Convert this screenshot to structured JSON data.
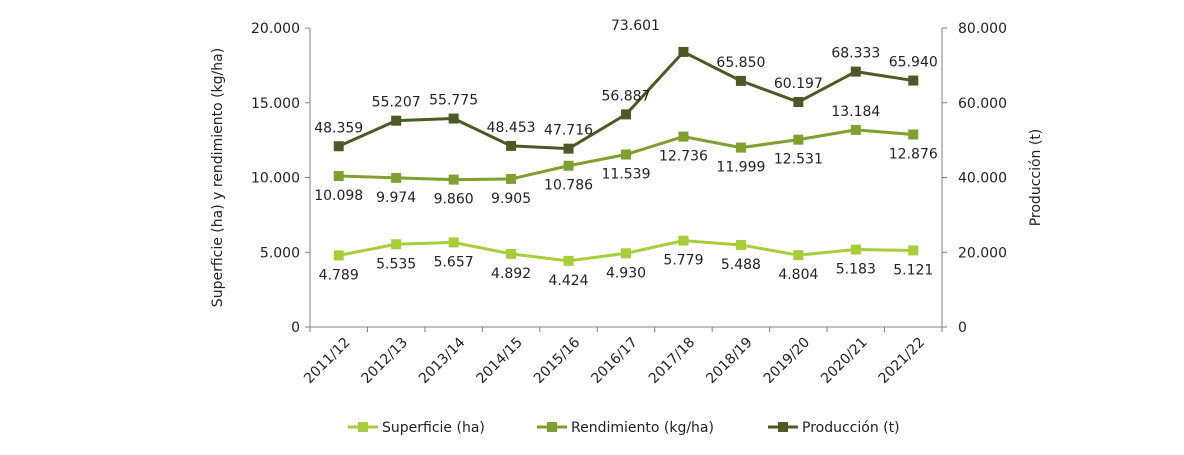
{
  "chart_data": {
    "type": "line",
    "categories": [
      "2011/12",
      "2012/13",
      "2013/14",
      "2014/15",
      "2015/16",
      "2016/17",
      "2017/18",
      "2018/19",
      "2019/20",
      "2020/21",
      "2021/22"
    ],
    "left_axis": {
      "title": "Superficie  (ha) y rendimiento (kg/ha)",
      "ylim": [
        0,
        20000
      ],
      "ticks": [
        "0",
        "5.000",
        "10.000",
        "15.000",
        "20.000"
      ]
    },
    "right_axis": {
      "title": "Producción (t)",
      "ylim": [
        0,
        80000
      ],
      "ticks": [
        "0",
        "20.000",
        "40.000",
        "60.000",
        "80.000"
      ]
    },
    "series": [
      {
        "name": "Superficie  (ha)",
        "axis": "left",
        "color": "#a6ce39",
        "values": [
          4789,
          5535,
          5657,
          4892,
          4424,
          4930,
          5779,
          5488,
          4804,
          5183,
          5121
        ],
        "labels": [
          "4.789",
          "5.535",
          "5.657",
          "4.892",
          "4.424",
          "4.930",
          "5.779",
          "5.488",
          "4.804",
          "5.183",
          "5.121"
        ]
      },
      {
        "name": "Rendimiento (kg/ha)",
        "axis": "left",
        "color": "#7f9f2e",
        "values": [
          10098,
          9974,
          9860,
          9905,
          10786,
          11539,
          12736,
          11999,
          12531,
          13184,
          12876
        ],
        "labels": [
          "10.098",
          "9.974",
          "9.860",
          "9.905",
          "10.786",
          "11.539",
          "12.736",
          "11.999",
          "12.531",
          "13.184",
          "12.876"
        ]
      },
      {
        "name": "Producción (t)",
        "axis": "right",
        "color": "#4b5a24",
        "values": [
          48359,
          55207,
          55775,
          48453,
          47716,
          56887,
          73601,
          65850,
          60197,
          68333,
          65940
        ],
        "labels": [
          "48.359",
          "55.207",
          "55.775",
          "48.453",
          "47.716",
          "56.887",
          "73.601",
          "65.850",
          "60.197",
          "68.333",
          "65.940"
        ]
      }
    ],
    "grid": false,
    "legend_position": "bottom"
  }
}
